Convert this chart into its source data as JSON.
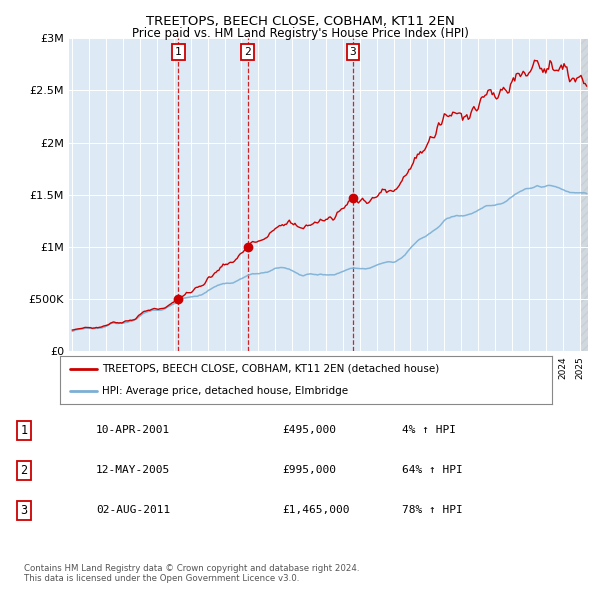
{
  "title": "TREETOPS, BEECH CLOSE, COBHAM, KT11 2EN",
  "subtitle": "Price paid vs. HM Land Registry's House Price Index (HPI)",
  "hpi_color": "#7bafd4",
  "price_color": "#cc0000",
  "plot_bg": "#ddeaf6",
  "sale_dates": [
    2001.27,
    2005.36,
    2011.59
  ],
  "sale_prices": [
    495000,
    995000,
    1465000
  ],
  "sale_labels": [
    "1",
    "2",
    "3"
  ],
  "legend_property": "TREETOPS, BEECH CLOSE, COBHAM, KT11 2EN (detached house)",
  "legend_hpi": "HPI: Average price, detached house, Elmbridge",
  "table_data": [
    [
      "1",
      "10-APR-2001",
      "£495,000",
      "4% ↑ HPI"
    ],
    [
      "2",
      "12-MAY-2005",
      "£995,000",
      "64% ↑ HPI"
    ],
    [
      "3",
      "02-AUG-2011",
      "£1,465,000",
      "78% ↑ HPI"
    ]
  ],
  "footer": "Contains HM Land Registry data © Crown copyright and database right 2024.\nThis data is licensed under the Open Government Licence v3.0.",
  "ylim": [
    0,
    3000000
  ],
  "yticks": [
    0,
    500000,
    1000000,
    1500000,
    2000000,
    2500000,
    3000000
  ],
  "ytick_labels": [
    "£0",
    "£500K",
    "£1M",
    "£1.5M",
    "£2M",
    "£2.5M",
    "£3M"
  ],
  "xmin": 1994.8,
  "xmax": 2025.5
}
